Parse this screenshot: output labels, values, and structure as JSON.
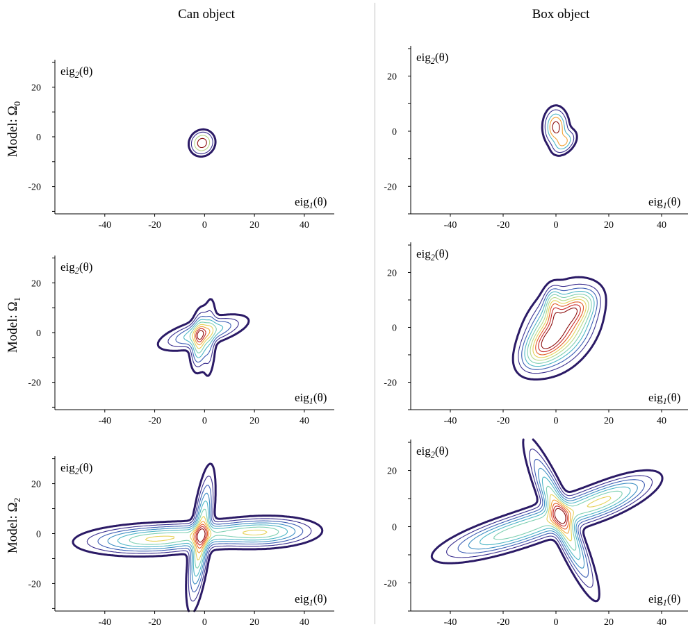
{
  "columns": [
    {
      "title": "Can object"
    },
    {
      "title": "Box object"
    }
  ],
  "rows": [
    {
      "model_label": "Model: Ω",
      "model_sub": "0"
    },
    {
      "model_label": "Model: Ω",
      "model_sub": "1"
    },
    {
      "model_label": "Model: Ω",
      "model_sub": "2"
    }
  ],
  "axis_labels": {
    "x_base": "eig",
    "x_sub": "1",
    "x_arg": "(θ)",
    "y_base": "eig",
    "y_sub": "2",
    "y_arg": "(θ)"
  },
  "palette": [
    "#2b1a66",
    "#3b2f8f",
    "#3f5fb5",
    "#3f8fc4",
    "#4fb7c7",
    "#7fd0b3",
    "#b8d98a",
    "#e6d25a",
    "#f2a43a",
    "#e35f2a",
    "#c62828",
    "#8b0d0d"
  ],
  "chart_data": [
    {
      "type": "contour",
      "panel": "can-omega0",
      "column": "Can object",
      "row": "Model: Ω0",
      "xlim": [
        -60,
        52
      ],
      "ylim": [
        -31,
        31
      ],
      "xticks": [
        -40,
        -20,
        0,
        20,
        40
      ],
      "yticks": [
        -20,
        0,
        20
      ],
      "lobes": [
        {
          "cx": -1,
          "cy": -2.5,
          "ux": 0.8,
          "uy": 1,
          "rlen": 2.5,
          "rwid": 2.3,
          "amp": 1
        }
      ],
      "levels": [
        0.08,
        0.2,
        0.45,
        0.75
      ]
    },
    {
      "type": "contour",
      "panel": "box-omega0",
      "column": "Box object",
      "row": "Model: Ω0",
      "xlim": [
        -55,
        50
      ],
      "ylim": [
        -30,
        31
      ],
      "xticks": [
        -40,
        -20,
        0,
        20,
        40
      ],
      "yticks": [
        -20,
        0,
        20
      ],
      "lobes": [
        {
          "cx": 0,
          "cy": 1.5,
          "ux": 0,
          "uy": 1,
          "rlen": 3.5,
          "rwid": 2.3,
          "amp": 1
        },
        {
          "cx": 3.2,
          "cy": -4,
          "ux": 0.7,
          "uy": 0.7,
          "rlen": 2.8,
          "rwid": 1.8,
          "amp": 0.6
        }
      ],
      "levels": [
        0.08,
        0.2,
        0.4,
        0.6,
        0.85
      ]
    },
    {
      "type": "contour",
      "panel": "can-omega1",
      "column": "Can object",
      "row": "Model: Ω1",
      "xlim": [
        -60,
        52
      ],
      "ylim": [
        -31,
        31
      ],
      "xticks": [
        -40,
        -20,
        0,
        20,
        40
      ],
      "yticks": [
        -20,
        0,
        20
      ],
      "lobes": [
        {
          "cx": -2,
          "cy": -3,
          "ux": 0.08,
          "uy": 1,
          "rlen": 6,
          "rwid": 1.8,
          "amp": 1
        },
        {
          "cx": -0.5,
          "cy": 0,
          "ux": 0.96,
          "uy": 0.27,
          "rlen": 9,
          "rwid": 2.6,
          "amp": 0.75
        },
        {
          "cx": 2,
          "cy": -2,
          "ux": 0.04,
          "uy": 1,
          "rlen": 9,
          "rwid": 1.5,
          "amp": 0.35
        }
      ],
      "levels": [
        0.05,
        0.12,
        0.2,
        0.3,
        0.42,
        0.55,
        0.68,
        0.8,
        0.9
      ]
    },
    {
      "type": "contour",
      "panel": "box-omega1",
      "column": "Box object",
      "row": "Model: Ω1",
      "xlim": [
        -55,
        50
      ],
      "ylim": [
        -30,
        31
      ],
      "xticks": [
        -40,
        -20,
        0,
        20,
        40
      ],
      "yticks": [
        -20,
        0,
        20
      ],
      "lobes": [
        {
          "cx": 2,
          "cy": 0,
          "ux": 0.6,
          "uy": 0.8,
          "rlen": 9,
          "rwid": 6,
          "amp": 1
        },
        {
          "cx": -5,
          "cy": -7,
          "ux": 0.7,
          "uy": 0.7,
          "rlen": 6,
          "rwid": 3.5,
          "amp": 0.6
        },
        {
          "cx": 8,
          "cy": 7,
          "ux": 0.8,
          "uy": 0.6,
          "rlen": 5,
          "rwid": 3,
          "amp": 0.5
        },
        {
          "cx": -1,
          "cy": 8,
          "ux": 0,
          "uy": 1,
          "rlen": 4,
          "rwid": 2,
          "amp": 0.45
        }
      ],
      "levels": [
        0.06,
        0.13,
        0.2,
        0.28,
        0.37,
        0.47,
        0.57,
        0.67,
        0.77,
        0.86
      ]
    },
    {
      "type": "contour",
      "panel": "can-omega2",
      "column": "Can object",
      "row": "Model: Ω2",
      "xlim": [
        -60,
        52
      ],
      "ylim": [
        -31,
        31
      ],
      "xticks": [
        -40,
        -20,
        0,
        20,
        40
      ],
      "yticks": [
        -20,
        0,
        20
      ],
      "lobes": [
        {
          "cx": -1.5,
          "cy": -2,
          "ux": 0.13,
          "uy": 0.99,
          "rlen": 13,
          "rwid": 1.9,
          "amp": 1
        },
        {
          "cx": -22,
          "cy": -2.5,
          "ux": 1,
          "uy": 0.03,
          "rlen": 14,
          "rwid": 3,
          "amp": 0.75
        },
        {
          "cx": 23,
          "cy": 0.5,
          "ux": 1,
          "uy": 0.03,
          "rlen": 11,
          "rwid": 3,
          "amp": 0.75
        },
        {
          "cx": 0,
          "cy": 0,
          "ux": 1,
          "uy": 0.03,
          "rlen": 13,
          "rwid": 2.5,
          "amp": 0.4
        }
      ],
      "levels": [
        0.04,
        0.09,
        0.15,
        0.22,
        0.3,
        0.39,
        0.48,
        0.57,
        0.66,
        0.75,
        0.84
      ]
    },
    {
      "type": "contour",
      "panel": "box-omega2",
      "column": "Box object",
      "row": "Model: Ω2",
      "xlim": [
        -55,
        50
      ],
      "ylim": [
        -30,
        31
      ],
      "xticks": [
        -40,
        -20,
        0,
        20,
        40
      ],
      "yticks": [
        -20,
        0,
        20
      ],
      "lobes": [
        {
          "cx": 2,
          "cy": 3,
          "ux": 0.42,
          "uy": -0.91,
          "rlen": 14,
          "rwid": 2.3,
          "amp": 1
        },
        {
          "cx": -18,
          "cy": -2.5,
          "ux": 0.96,
          "uy": 0.28,
          "rlen": 14,
          "rwid": 3,
          "amp": 0.7
        },
        {
          "cx": 20,
          "cy": 10,
          "ux": 0.93,
          "uy": 0.37,
          "rlen": 10,
          "rwid": 3,
          "amp": 0.7
        },
        {
          "cx": 3,
          "cy": 5,
          "ux": 0.95,
          "uy": 0.32,
          "rlen": 12,
          "rwid": 3,
          "amp": 0.4
        }
      ],
      "levels": [
        0.04,
        0.09,
        0.15,
        0.22,
        0.3,
        0.39,
        0.48,
        0.57,
        0.66,
        0.75,
        0.84
      ]
    }
  ]
}
